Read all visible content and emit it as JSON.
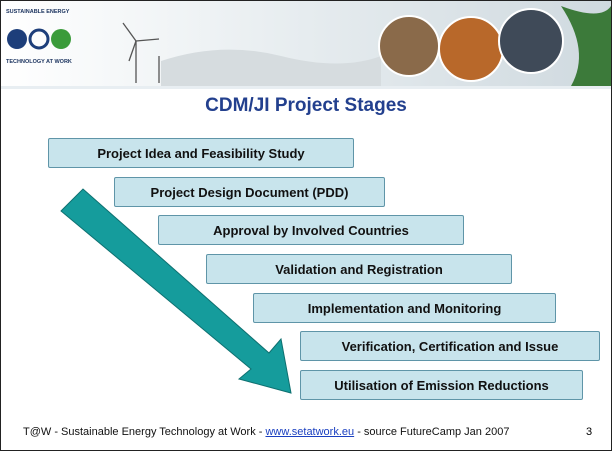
{
  "header": {
    "logo_top": "SUSTAINABLE ENERGY",
    "logo_bottom": "TECHNOLOGY AT WORK"
  },
  "title": "CDM/JI Project Stages",
  "stages": [
    "Project Idea and Feasibility Study",
    "Project Design Document (PDD)",
    "Approval by Involved Countries",
    "Validation and Registration",
    "Implementation and Monitoring",
    "Verification, Certification and Issue",
    "Utilisation of Emission Reductions"
  ],
  "footer": {
    "prefix": "T@W - Sustainable Energy Technology at Work - ",
    "link": "www.setatwork.eu",
    "suffix": " - source FutureCamp Jan 2007",
    "page": "3"
  }
}
